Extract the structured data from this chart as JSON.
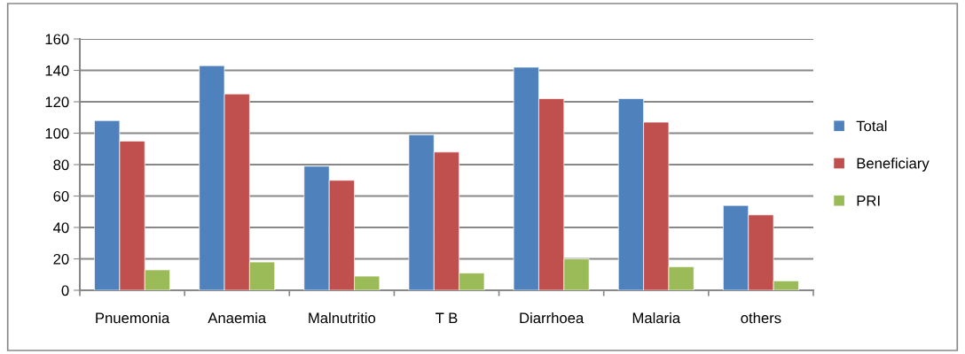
{
  "chart_data": {
    "type": "bar",
    "categories": [
      "Pnuemonia",
      "Anaemia",
      "Malnutritio",
      "T B",
      "Diarrhoea",
      "Malaria",
      "others"
    ],
    "series": [
      {
        "name": "Total",
        "color": "#4f81bd",
        "values": [
          108,
          143,
          79,
          99,
          142,
          122,
          54
        ]
      },
      {
        "name": "Beneficiary",
        "color": "#c0504d",
        "values": [
          95,
          125,
          70,
          88,
          122,
          107,
          48
        ]
      },
      {
        "name": "PRI",
        "color": "#9bbb59",
        "values": [
          13,
          18,
          9,
          11,
          20,
          15,
          6
        ]
      }
    ],
    "ylim": [
      0,
      160
    ],
    "yticks": [
      0,
      20,
      40,
      60,
      80,
      100,
      120,
      140,
      160
    ],
    "grid": "y",
    "legend": "right"
  }
}
